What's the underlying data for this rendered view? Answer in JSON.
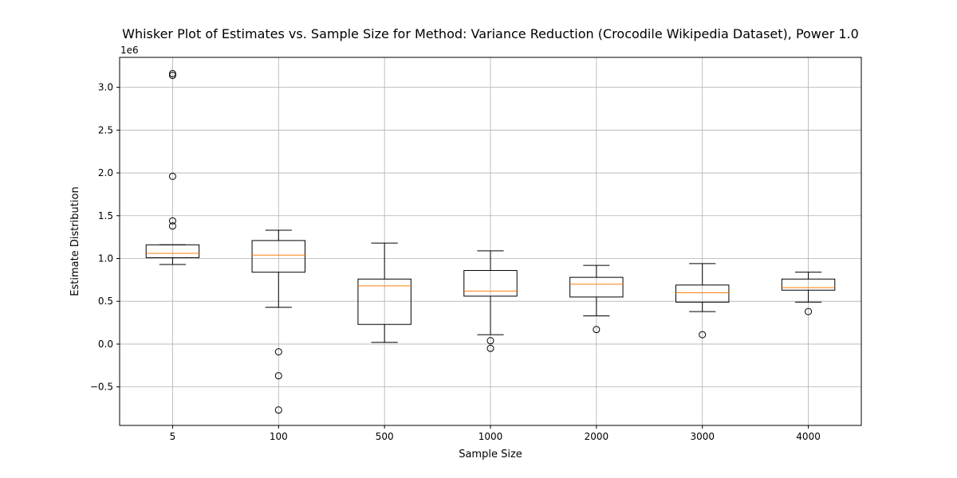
{
  "chart_data": {
    "type": "box",
    "title": "Whisker Plot of Estimates vs. Sample Size for Method: Variance Reduction (Crocodile Wikipedia Dataset), Power 1.0",
    "xlabel": "Sample Size",
    "ylabel": "Estimate Distribution",
    "y_scale_label": "1e6",
    "ylim": [
      -0.95,
      3.35
    ],
    "yticks": [
      -0.5,
      0.0,
      0.5,
      1.0,
      1.5,
      2.0,
      2.5,
      3.0
    ],
    "ytick_labels": [
      "−0.5",
      "0.0",
      "0.5",
      "1.0",
      "1.5",
      "2.0",
      "2.5",
      "3.0"
    ],
    "grid": true,
    "colors": {
      "box": "#000000",
      "median": "#ff7f0e",
      "grid": "#b0b0b0"
    },
    "categories": [
      "5",
      "100",
      "500",
      "1000",
      "2000",
      "3000",
      "4000"
    ],
    "boxes": [
      {
        "category": "5",
        "whisker_low": 0.93,
        "q1": 1.01,
        "median": 1.06,
        "q3": 1.16,
        "whisker_high": 1.16,
        "outliers": [
          1.38,
          1.44,
          1.96,
          3.14,
          3.16
        ]
      },
      {
        "category": "100",
        "whisker_low": 0.43,
        "q1": 0.84,
        "median": 1.04,
        "q3": 1.21,
        "whisker_high": 1.33,
        "outliers": [
          -0.09,
          -0.37,
          -0.77
        ]
      },
      {
        "category": "500",
        "whisker_low": 0.02,
        "q1": 0.23,
        "median": 0.68,
        "q3": 0.76,
        "whisker_high": 1.18,
        "outliers": []
      },
      {
        "category": "1000",
        "whisker_low": 0.11,
        "q1": 0.56,
        "median": 0.62,
        "q3": 0.86,
        "whisker_high": 1.09,
        "outliers": [
          0.04,
          -0.05
        ]
      },
      {
        "category": "2000",
        "whisker_low": 0.33,
        "q1": 0.55,
        "median": 0.7,
        "q3": 0.78,
        "whisker_high": 0.92,
        "outliers": [
          0.17
        ]
      },
      {
        "category": "3000",
        "whisker_low": 0.38,
        "q1": 0.49,
        "median": 0.6,
        "q3": 0.69,
        "whisker_high": 0.94,
        "outliers": [
          0.11
        ]
      },
      {
        "category": "4000",
        "whisker_low": 0.49,
        "q1": 0.63,
        "median": 0.66,
        "q3": 0.76,
        "whisker_high": 0.84,
        "outliers": [
          0.38
        ]
      }
    ]
  }
}
